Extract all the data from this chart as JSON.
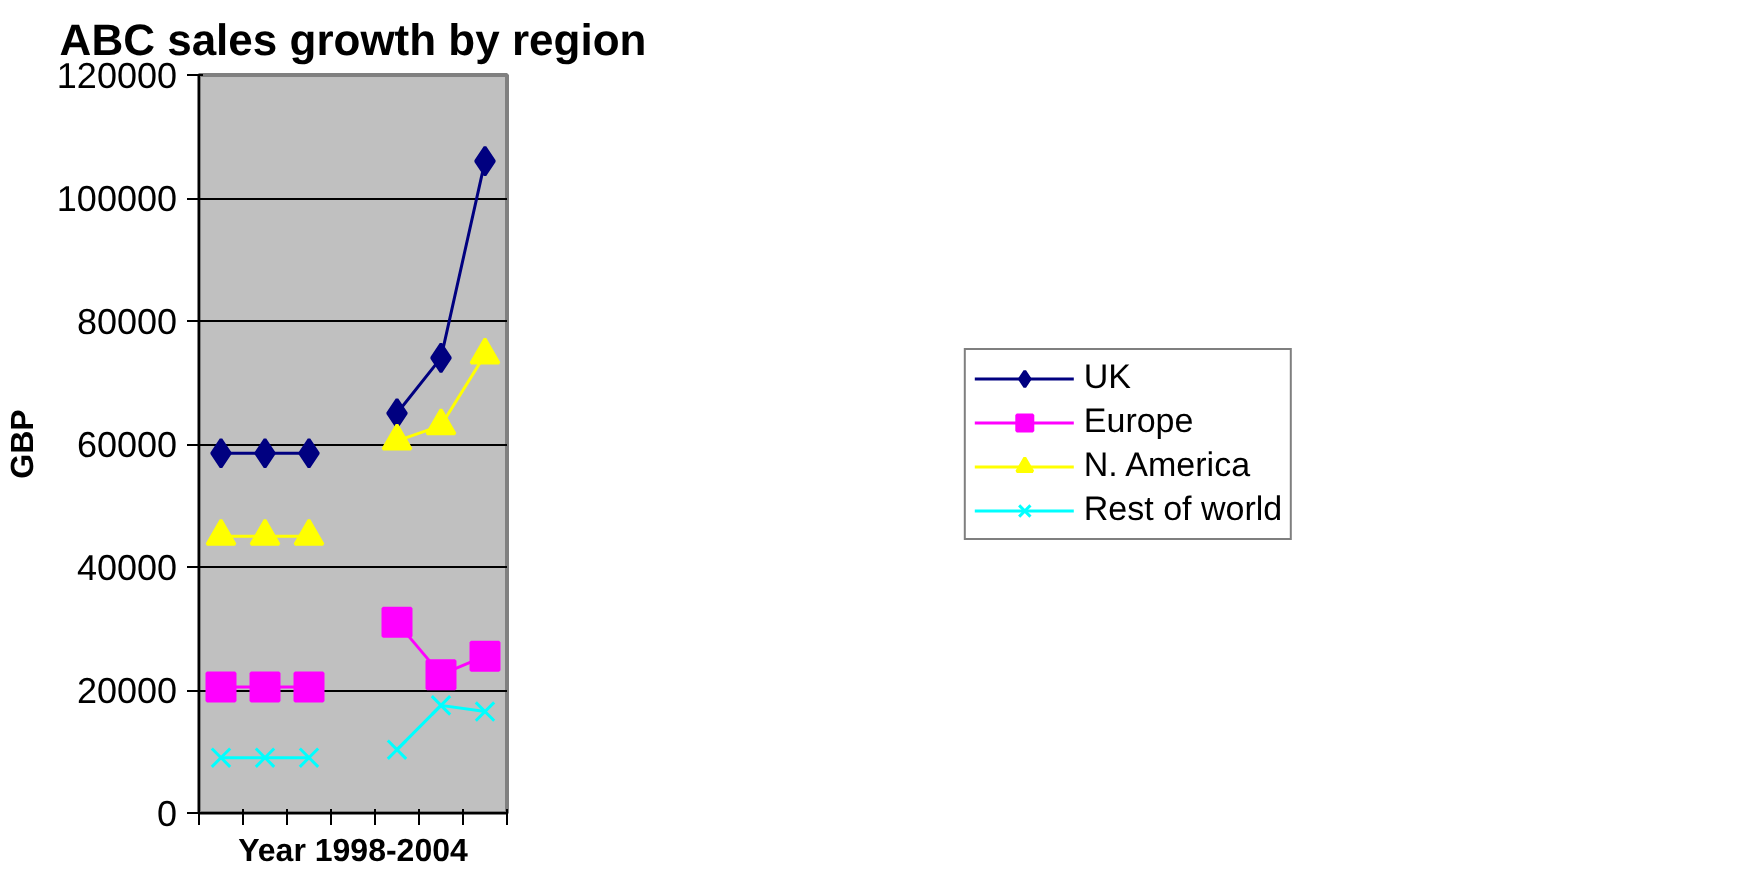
{
  "chart_data": {
    "type": "line",
    "title": "ABC sales growth by region",
    "xlabel": "Year 1998-2004",
    "ylabel": "GBP",
    "categories": [
      null,
      null,
      null,
      null,
      null,
      null,
      null
    ],
    "series": [
      {
        "name": "UK",
        "color": "#000080",
        "marker": "diamond",
        "values": [
          58500,
          58500,
          58500,
          null,
          65000,
          74000,
          106000
        ]
      },
      {
        "name": "Europe",
        "color": "#ff00ff",
        "marker": "square",
        "values": [
          20500,
          20500,
          20500,
          null,
          31000,
          22500,
          25500
        ]
      },
      {
        "name": "N. America",
        "color": "#ffff00",
        "marker": "triangle",
        "values": [
          45000,
          45000,
          45000,
          null,
          60500,
          63000,
          74500
        ]
      },
      {
        "name": "Rest of world",
        "color": "#00ffff",
        "marker": "x",
        "values": [
          9000,
          9000,
          9000,
          null,
          10300,
          17500,
          16500
        ]
      }
    ],
    "ylim": [
      0,
      120000
    ],
    "yticks": [
      0,
      20000,
      40000,
      60000,
      80000,
      100000,
      120000
    ],
    "grid": "y",
    "legend": "right",
    "tick_labels": "y"
  }
}
